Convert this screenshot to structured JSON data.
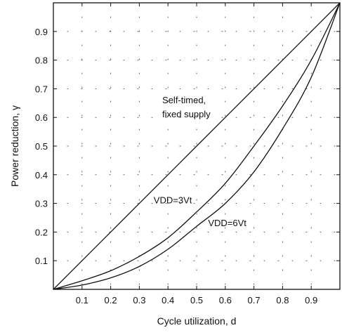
{
  "chart_data": {
    "type": "line",
    "xlabel": "Cycle utilization, d",
    "ylabel": "Power reduction, γ",
    "xlim": [
      0,
      1
    ],
    "ylim": [
      0,
      1
    ],
    "x_ticks": [
      "0.1",
      "0.2",
      "0.3",
      "0.4",
      "0.5",
      "0.6",
      "0.7",
      "0.8",
      "0.9"
    ],
    "y_ticks": [
      "0.1",
      "0.2",
      "0.3",
      "0.4",
      "0.5",
      "0.6",
      "0.7",
      "0.8",
      "0.9"
    ],
    "grid": "dotted",
    "series": [
      {
        "name": "Self-timed, fixed supply",
        "x": [
          0,
          0.1,
          0.2,
          0.3,
          0.4,
          0.5,
          0.6,
          0.7,
          0.8,
          0.9,
          1.0
        ],
        "y": [
          0,
          0.1,
          0.2,
          0.3,
          0.4,
          0.5,
          0.6,
          0.7,
          0.8,
          0.9,
          1.0
        ]
      },
      {
        "name": "VDD=3Vt",
        "x": [
          0,
          0.1,
          0.2,
          0.3,
          0.4,
          0.5,
          0.6,
          0.7,
          0.8,
          0.9,
          1.0
        ],
        "y": [
          0,
          0.03,
          0.065,
          0.115,
          0.18,
          0.27,
          0.37,
          0.5,
          0.64,
          0.8,
          1.0
        ]
      },
      {
        "name": "VDD=6Vt",
        "x": [
          0,
          0.1,
          0.2,
          0.3,
          0.4,
          0.5,
          0.6,
          0.7,
          0.8,
          0.9,
          1.0
        ],
        "y": [
          0,
          0.015,
          0.04,
          0.08,
          0.14,
          0.22,
          0.3,
          0.41,
          0.56,
          0.74,
          1.0
        ]
      }
    ],
    "annotations": [
      {
        "text_lines": [
          "Self-timed,",
          "fixed supply"
        ],
        "x": 0.38,
        "y": 0.65
      },
      {
        "text_lines": [
          "VDD=3Vt"
        ],
        "x": 0.35,
        "y": 0.3
      },
      {
        "text_lines": [
          "VDD=6Vt"
        ],
        "x": 0.54,
        "y": 0.22
      }
    ]
  }
}
